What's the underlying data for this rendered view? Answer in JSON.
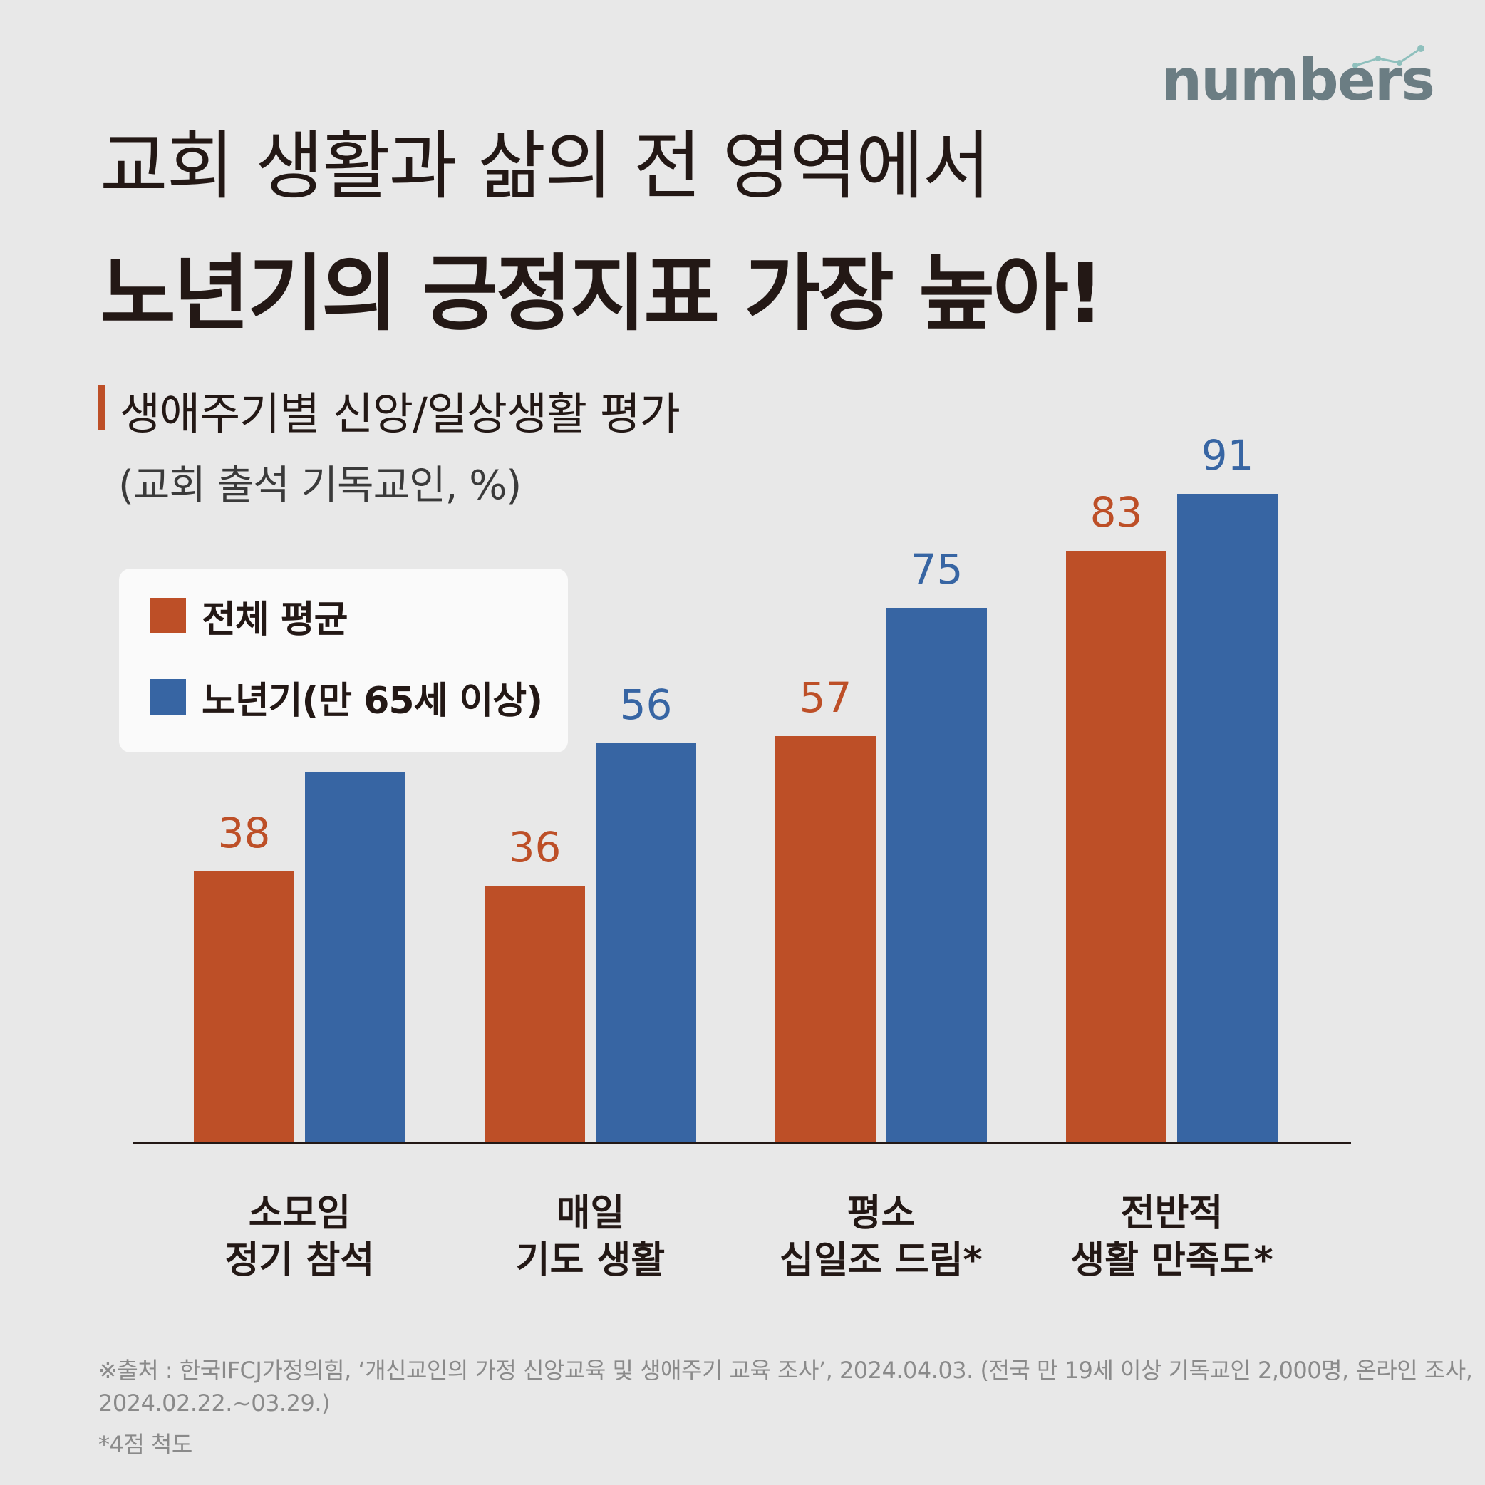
{
  "brand": {
    "logo_text": "numbers"
  },
  "header": {
    "title_line1": "교회 생활과 삶의 전 영역에서",
    "title_line2": "노년기의 긍정지표 가장 높아!"
  },
  "chart_header": {
    "subtitle": "생애주기별 신앙/일상생활 평가",
    "unit_note": "(교회 출석 기독교인, %)"
  },
  "colors": {
    "overall": "#bd4f27",
    "senior": "#3765a3",
    "background": "#e8e8e8"
  },
  "chart_data": {
    "type": "bar",
    "categories": [
      [
        "소모임",
        "정기 참석"
      ],
      [
        "매일",
        "기도 생활"
      ],
      [
        "평소",
        "십일조 드림*"
      ],
      [
        "전반적",
        "생활 만족도*"
      ]
    ],
    "series": [
      {
        "name": "전체 평균",
        "values": [
          38,
          36,
          57,
          83
        ]
      },
      {
        "name": "노년기(만 65세 이상)",
        "values": [
          52,
          56,
          75,
          91
        ]
      }
    ],
    "ylim": [
      0,
      100
    ],
    "legend_position": "top-left",
    "grid": false
  },
  "footer": {
    "source_line1": "※출처 : 한국IFCJ가정의힘, ‘개신교인의 가정 신앙교육 및 생애주기 교육 조사’, 2024.04.03. (전국 만 19세 이상 기독교인 2,000명, 온라인 조사,",
    "source_line2": "2024.02.22.~03.29.)",
    "note": "*4점 척도"
  }
}
